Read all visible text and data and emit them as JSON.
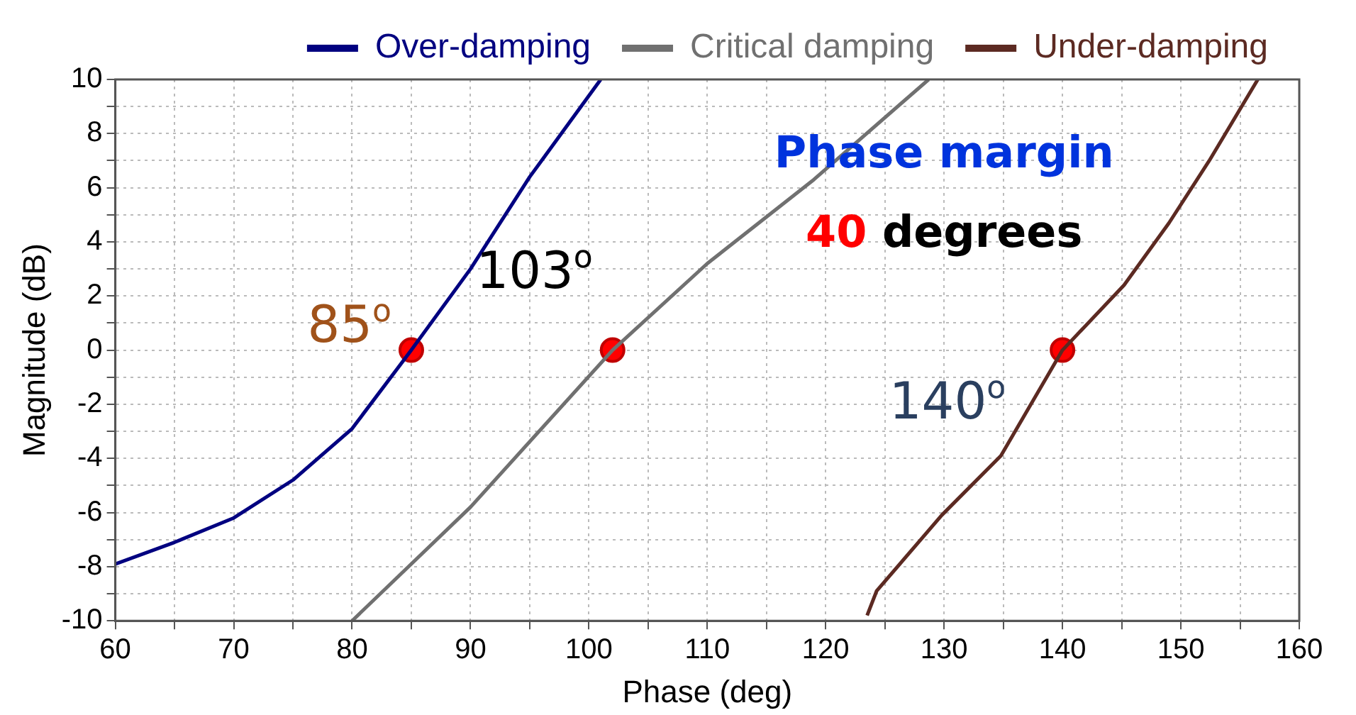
{
  "chart_data": {
    "type": "line",
    "xlabel": "Phase (deg)",
    "ylabel": "Magnitude (dB)",
    "xlim": [
      60,
      160
    ],
    "xticks": [
      60,
      {
        "value": 65,
        "label": null
      },
      70,
      {
        "value": 75,
        "label": null
      },
      80,
      {
        "value": 85,
        "label": null
      },
      90,
      {
        "value": 95,
        "label": null
      },
      100,
      {
        "value": 105,
        "label": null
      },
      110,
      {
        "value": 115,
        "label": null
      },
      120,
      {
        "value": 125,
        "label": null
      },
      130,
      {
        "value": 135,
        "label": null
      },
      140,
      {
        "value": 145,
        "label": null
      },
      150,
      {
        "value": 155,
        "label": null
      },
      160
    ],
    "ylim": [
      -10,
      10
    ],
    "yticks": [
      -10,
      {
        "value": -9,
        "label": null
      },
      -8,
      {
        "value": -7,
        "label": null
      },
      -6,
      {
        "value": -5,
        "label": null
      },
      -4,
      {
        "value": -3,
        "label": null
      },
      -2,
      {
        "value": -1,
        "label": null
      },
      0,
      {
        "value": 1,
        "label": null
      },
      2,
      {
        "value": 3,
        "label": null
      },
      4,
      {
        "value": 5,
        "label": null
      },
      6,
      {
        "value": 7,
        "label": null
      },
      8,
      {
        "value": 9,
        "label": null
      },
      10
    ],
    "grid": true,
    "legend": "top",
    "line_style": "solid",
    "marker": "none",
    "series": [
      {
        "name": "Over-damping",
        "color": "#000080",
        "x": [
          60,
          65,
          70,
          75,
          80,
          85,
          90,
          95,
          101
        ],
        "values": [
          -7.9,
          -7.1,
          -6.2,
          -4.8,
          -2.9,
          0,
          3.0,
          6.4,
          10
        ]
      },
      {
        "name": "Critical damping",
        "color": "#707070",
        "x": [
          80,
          90,
          102,
          110,
          119,
          128.7
        ],
        "values": [
          -10,
          -5.8,
          0,
          3.2,
          6.3,
          10
        ]
      },
      {
        "name": "Under-damping",
        "color": "#5c2a22",
        "x": [
          123.5,
          124.3,
          129.8,
          134.8,
          140,
          145.2,
          149,
          152.4,
          156.5
        ],
        "values": [
          -9.8,
          -8.9,
          -6.1,
          -3.9,
          0,
          2.4,
          4.7,
          7.0,
          10
        ]
      },
      {
        "type": "scatter",
        "color": "#ff0000",
        "marker": "circle",
        "x": [
          85,
          102,
          140
        ],
        "values": [
          0,
          0,
          0
        ]
      }
    ],
    "annotations": [
      {
        "text": "85$^{o}$",
        "x": 85,
        "y": 0
      },
      {
        "text": "103$^{o}$",
        "x": 102,
        "y": 0
      },
      {
        "text": "140$^{o}$",
        "x": 140,
        "y": 0
      },
      "Phase margin",
      "40 degrees"
    ]
  }
}
